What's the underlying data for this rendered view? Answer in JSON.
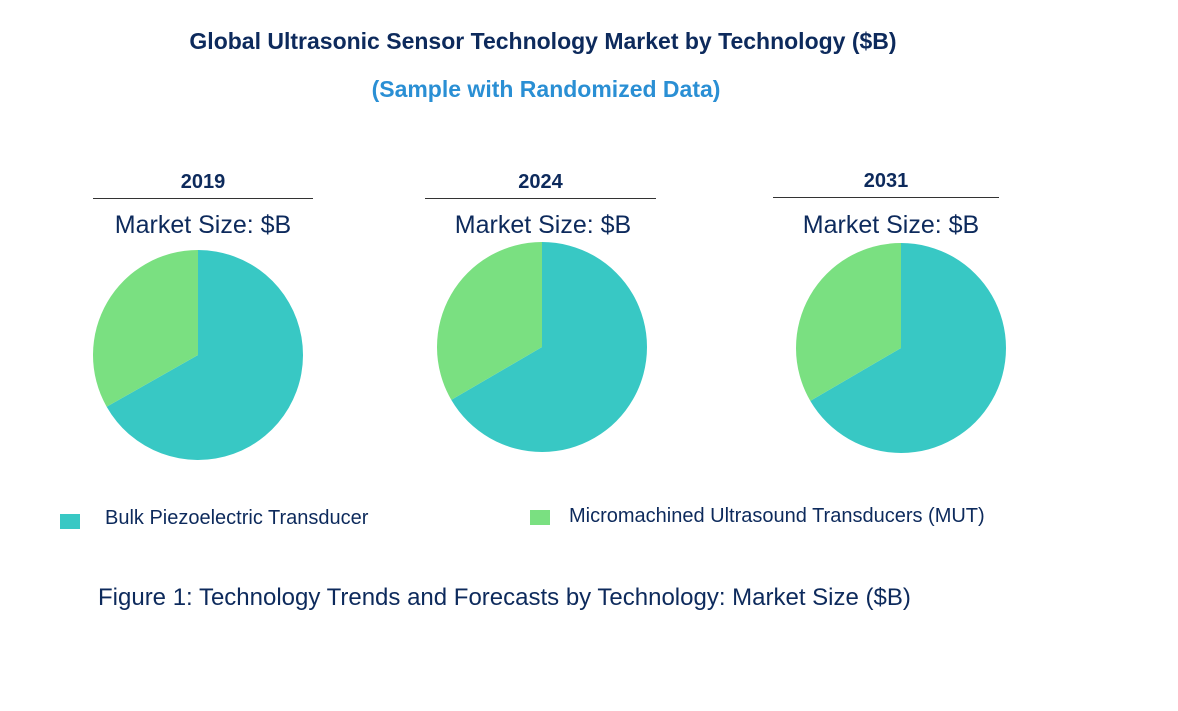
{
  "title": "Global Ultrasonic Sensor Technology Market by Technology ($B)",
  "subtitle": "(Sample with Randomized Data)",
  "chart_data": {
    "type": "pie",
    "legend_position": "bottom",
    "series_names": [
      "Bulk Piezoelectric Transducer",
      "Micromachined Ultrasound Transducers (MUT)"
    ],
    "colors": [
      "#38c8c4",
      "#7ae081"
    ],
    "pies": [
      {
        "year": "2019",
        "label": "Market Size: $B",
        "values": [
          66.8,
          33.2
        ]
      },
      {
        "year": "2024",
        "label": "Market Size: $B",
        "values": [
          66.6,
          33.4
        ]
      },
      {
        "year": "2031",
        "label": "Market Size: $B",
        "values": [
          66.6,
          33.4
        ]
      }
    ]
  },
  "caption": "Figure 1: Technology Trends and Forecasts by Technology: Market Size ($B)"
}
